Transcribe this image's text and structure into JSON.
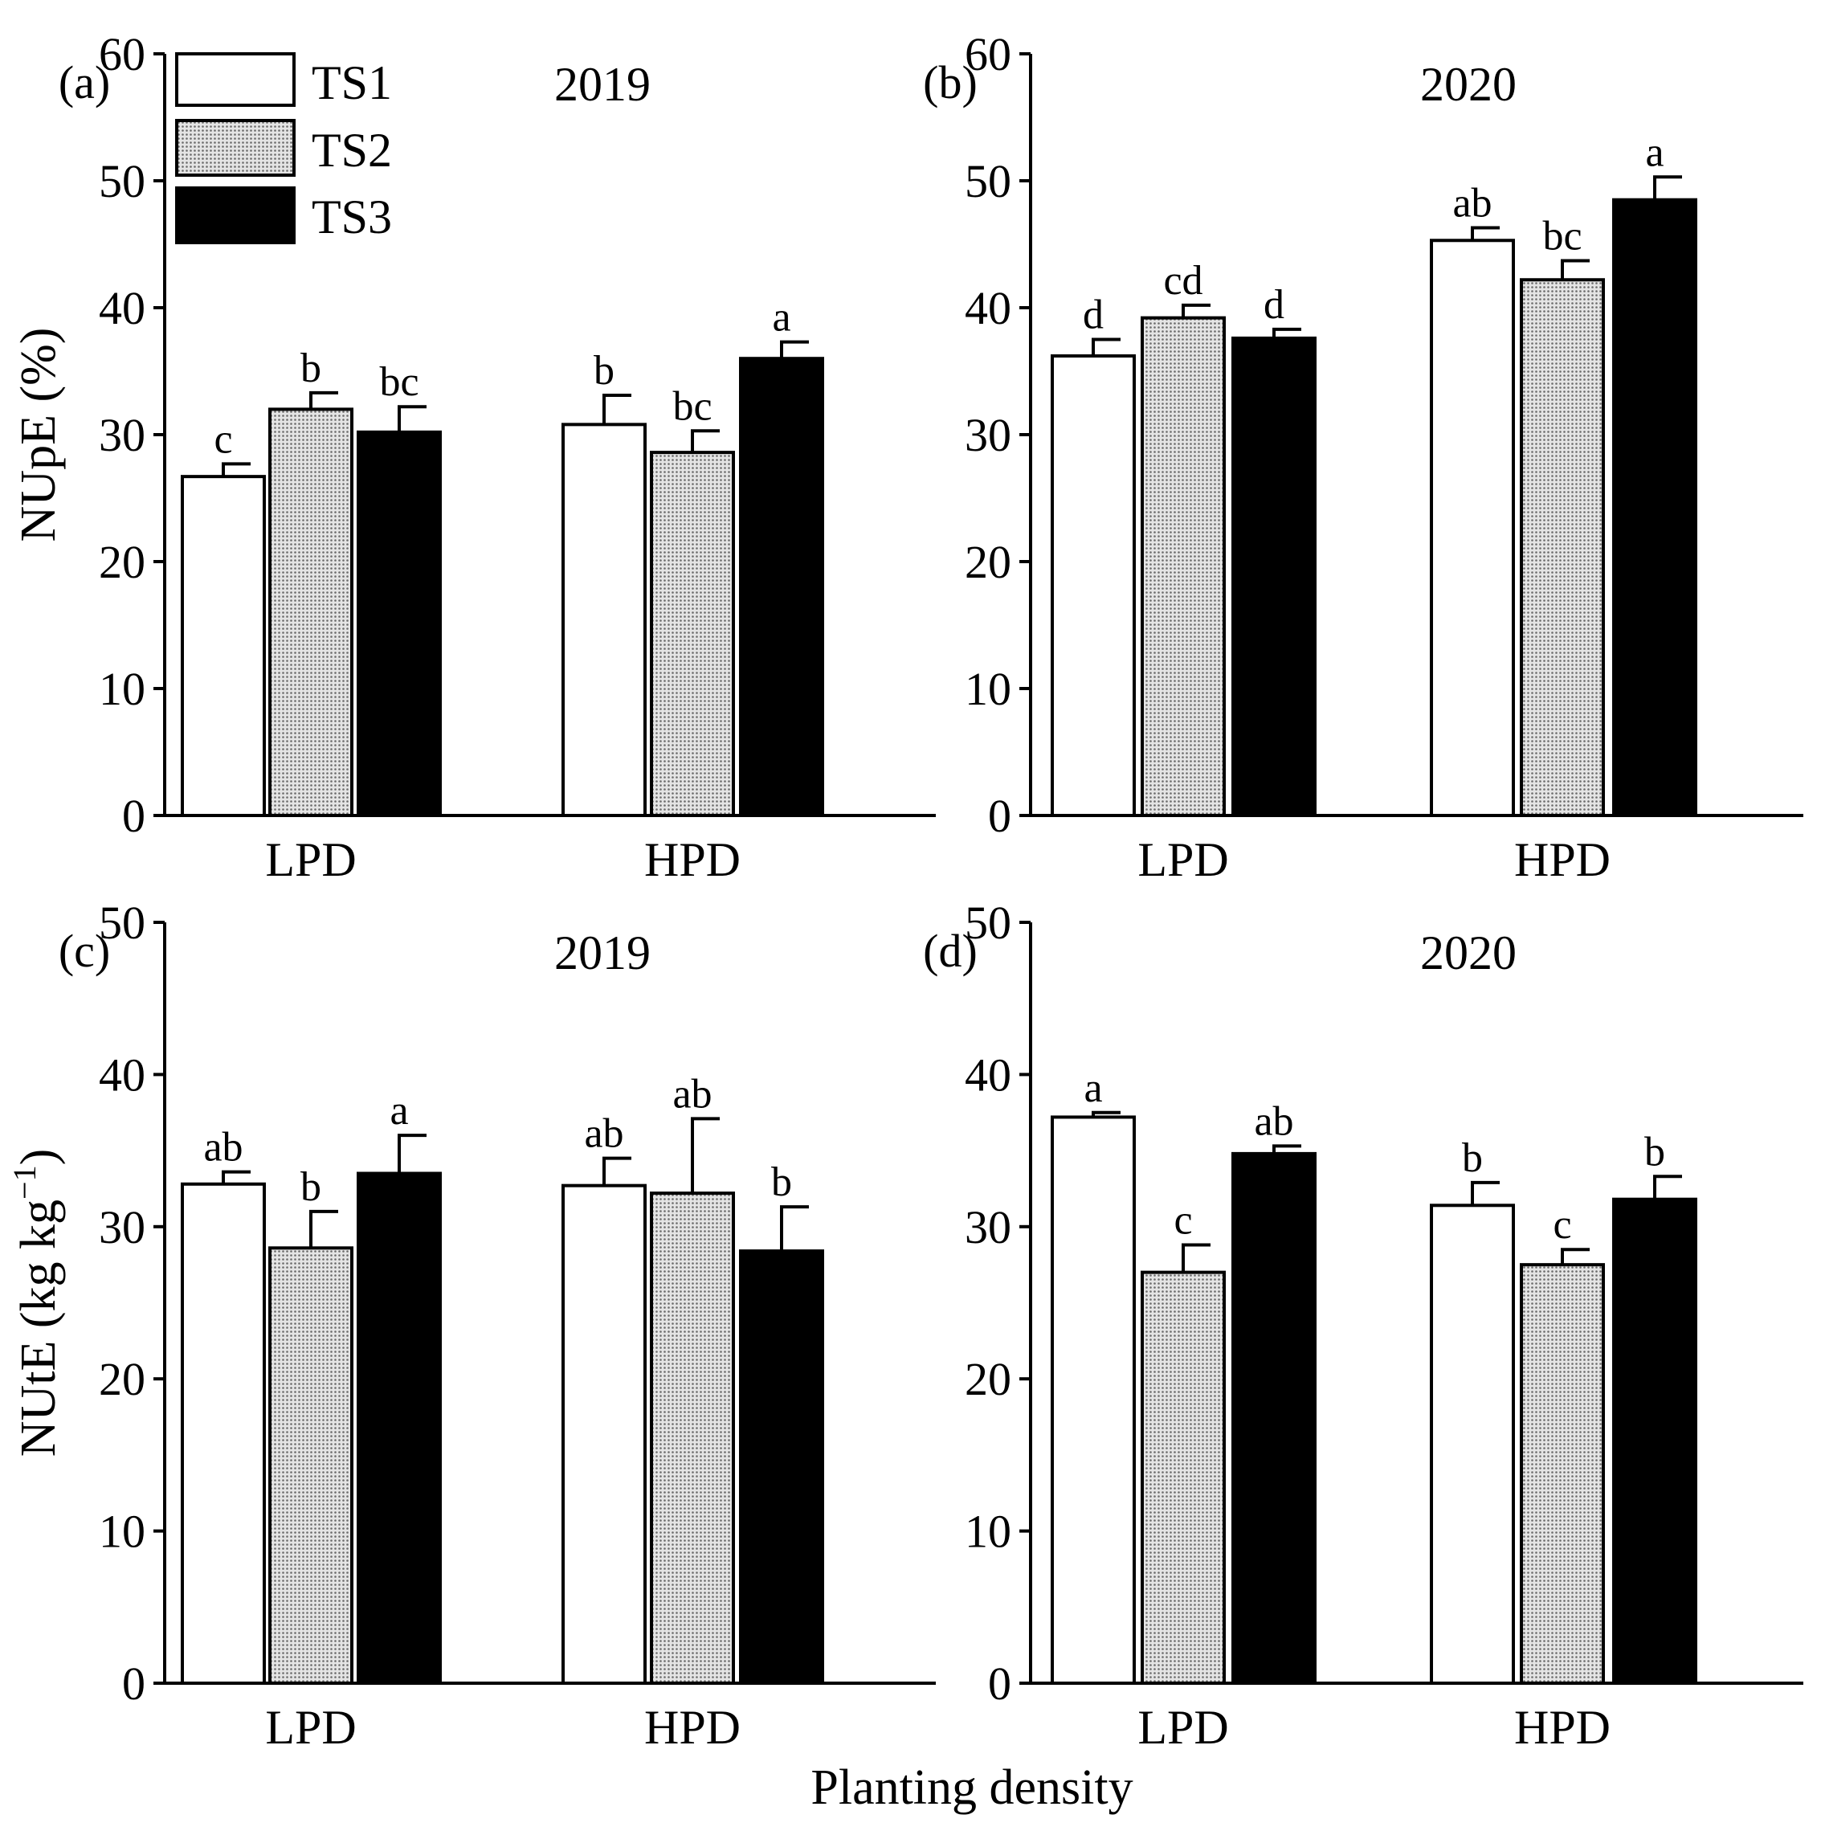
{
  "figure": {
    "xlabel": "Planting density",
    "legend": [
      "TS1",
      "TS2",
      "TS3"
    ],
    "series_colors": {
      "TS1": "#ffffff",
      "TS2": "#c8c8c8",
      "TS3": "#000000"
    }
  },
  "chart_data": [
    {
      "panel": "(a)",
      "type": "bar",
      "title": "2019",
      "ylabel": "NUpE (%)",
      "ylabel_sup": "",
      "ylabel_end": "",
      "ylim": [
        0,
        60
      ],
      "yticks": [
        "0",
        "10",
        "20",
        "30",
        "40",
        "50",
        "60"
      ],
      "categories": [
        "LPD",
        "HPD"
      ],
      "series": [
        {
          "name": "TS1",
          "values": [
            26.7,
            30.8
          ],
          "errors": [
            1.0,
            2.3
          ],
          "letters": [
            "c",
            "b"
          ]
        },
        {
          "name": "TS2",
          "values": [
            32.0,
            28.6
          ],
          "errors": [
            1.3,
            1.7
          ],
          "letters": [
            "b",
            "bc"
          ]
        },
        {
          "name": "TS3",
          "values": [
            30.2,
            36.0
          ],
          "errors": [
            2.0,
            1.3
          ],
          "letters": [
            "bc",
            "a"
          ]
        }
      ]
    },
    {
      "panel": "(b)",
      "type": "bar",
      "title": "2020",
      "ylabel": "",
      "ylabel_sup": "",
      "ylabel_end": "",
      "ylim": [
        0,
        60
      ],
      "yticks": [
        "0",
        "10",
        "20",
        "30",
        "40",
        "50",
        "60"
      ],
      "categories": [
        "LPD",
        "HPD"
      ],
      "series": [
        {
          "name": "TS1",
          "values": [
            36.2,
            45.3
          ],
          "errors": [
            1.3,
            1.0
          ],
          "letters": [
            "d",
            "ab"
          ]
        },
        {
          "name": "TS2",
          "values": [
            39.2,
            42.2
          ],
          "errors": [
            1.0,
            1.5
          ],
          "letters": [
            "cd",
            "bc"
          ]
        },
        {
          "name": "TS3",
          "values": [
            37.6,
            48.5
          ],
          "errors": [
            0.7,
            1.8
          ],
          "letters": [
            "d",
            "a"
          ]
        }
      ]
    },
    {
      "panel": "(c)",
      "type": "bar",
      "title": "2019",
      "ylabel": "NUtE (kg kg",
      "ylabel_sup": "−1",
      "ylabel_end": ")",
      "ylim": [
        0,
        50
      ],
      "yticks": [
        "0",
        "10",
        "20",
        "30",
        "40",
        "50"
      ],
      "categories": [
        "LPD",
        "HPD"
      ],
      "series": [
        {
          "name": "TS1",
          "values": [
            32.8,
            32.7
          ],
          "errors": [
            0.8,
            1.8
          ],
          "letters": [
            "ab",
            "ab"
          ]
        },
        {
          "name": "TS2",
          "values": [
            28.6,
            32.2
          ],
          "errors": [
            2.4,
            4.9
          ],
          "letters": [
            "b",
            "ab"
          ]
        },
        {
          "name": "TS3",
          "values": [
            33.5,
            28.4
          ],
          "errors": [
            2.5,
            2.9
          ],
          "letters": [
            "a",
            "b"
          ]
        }
      ]
    },
    {
      "panel": "(d)",
      "type": "bar",
      "title": "2020",
      "ylabel": "",
      "ylabel_sup": "",
      "ylabel_end": "",
      "ylim": [
        0,
        50
      ],
      "yticks": [
        "0",
        "10",
        "20",
        "30",
        "40",
        "50"
      ],
      "categories": [
        "LPD",
        "HPD"
      ],
      "series": [
        {
          "name": "TS1",
          "values": [
            37.2,
            31.4
          ],
          "errors": [
            0.3,
            1.5
          ],
          "letters": [
            "a",
            "b"
          ]
        },
        {
          "name": "TS2",
          "values": [
            27.0,
            27.5
          ],
          "errors": [
            1.8,
            1.0
          ],
          "letters": [
            "c",
            "c"
          ]
        },
        {
          "name": "TS3",
          "values": [
            34.8,
            31.8
          ],
          "errors": [
            0.5,
            1.5
          ],
          "letters": [
            "ab",
            "b"
          ]
        }
      ]
    }
  ]
}
